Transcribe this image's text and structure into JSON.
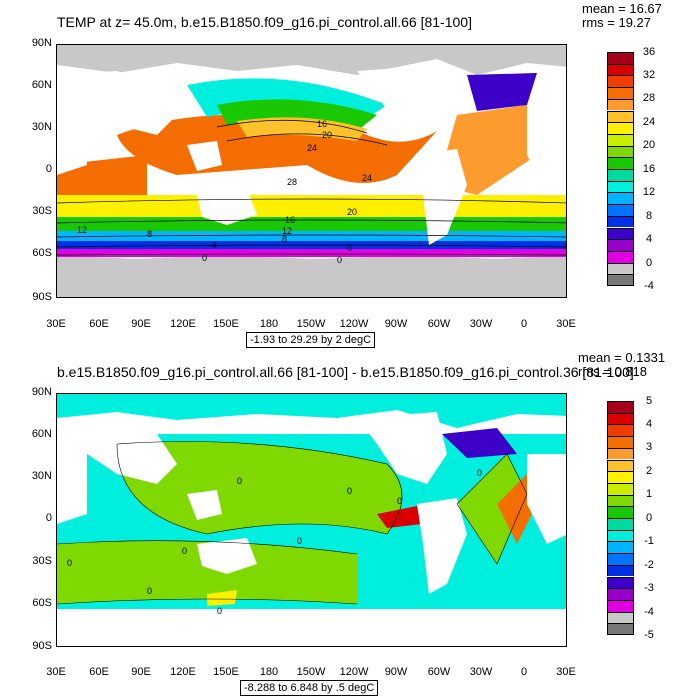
{
  "panel1": {
    "title": "TEMP at z=  45.0m, b.e15.B1850.f09_g16.pi_control.all.66 [81-100]",
    "mean": "mean = 16.67",
    "rms": "rms = 19.27",
    "range_note": "-1.93 to 29.29 by 2 degC",
    "lat_ticks": [
      "90N",
      "60N",
      "30N",
      "0",
      "30S",
      "60S",
      "90S"
    ],
    "lon_ticks": [
      "30E",
      "60E",
      "90E",
      "120E",
      "150E",
      "180",
      "150W",
      "120W",
      "90W",
      "60W",
      "30W",
      "0",
      "30E"
    ],
    "contour_labels": [
      "16",
      "20",
      "24",
      "28",
      "24",
      "20",
      "16",
      "12",
      "12",
      "8",
      "8",
      "4",
      "0",
      "0",
      "0"
    ],
    "colorbar": {
      "labels": [
        "36",
        "32",
        "28",
        "24",
        "20",
        "16",
        "12",
        "8",
        "4",
        "0",
        "-4"
      ],
      "colors": [
        "#a40019",
        "#d80000",
        "#f03c00",
        "#f46d00",
        "#fd9b2e",
        "#ffc22c",
        "#fff000",
        "#c9ee00",
        "#7fd800",
        "#19c800",
        "#00d9a0",
        "#00eedd",
        "#00b4ff",
        "#0073ff",
        "#0030e6",
        "#3c00c8",
        "#9600c8",
        "#e100e1",
        "#c8c8c8",
        "#787878"
      ]
    }
  },
  "panel2": {
    "title": "b.e15.B1850.f09_g16.pi_control.all.66 [81-100] - b.e15.B1850.f09_g16.pi_control.36 [81-100]",
    "mean": "mean = 0.1331",
    "rms": "rms = 0.818",
    "range_note": "-8.288 to 6.848 by .5 degC",
    "lat_ticks": [
      "90N",
      "60N",
      "30N",
      "0",
      "30S",
      "60S",
      "90S"
    ],
    "lon_ticks": [
      "30E",
      "60E",
      "90E",
      "120E",
      "150E",
      "180",
      "150W",
      "120W",
      "90W",
      "60W",
      "30W",
      "0",
      "30E"
    ],
    "contour_labels": [
      "0",
      "0",
      "0",
      "0",
      "0",
      "0",
      "0",
      "0",
      "0"
    ],
    "colorbar": {
      "labels": [
        "5",
        "4",
        "3",
        "2",
        "1",
        "0",
        "-1",
        "-2",
        "-3",
        "-4",
        "-5"
      ],
      "colors": [
        "#a40019",
        "#d80000",
        "#f03c00",
        "#f46d00",
        "#fd9b2e",
        "#ffc22c",
        "#fff000",
        "#c9ee00",
        "#7fd800",
        "#19c800",
        "#00d9a0",
        "#00eedd",
        "#00b4ff",
        "#0073ff",
        "#0030e6",
        "#3c00c8",
        "#9600c8",
        "#e100e1",
        "#c8c8c8",
        "#787878"
      ]
    }
  }
}
